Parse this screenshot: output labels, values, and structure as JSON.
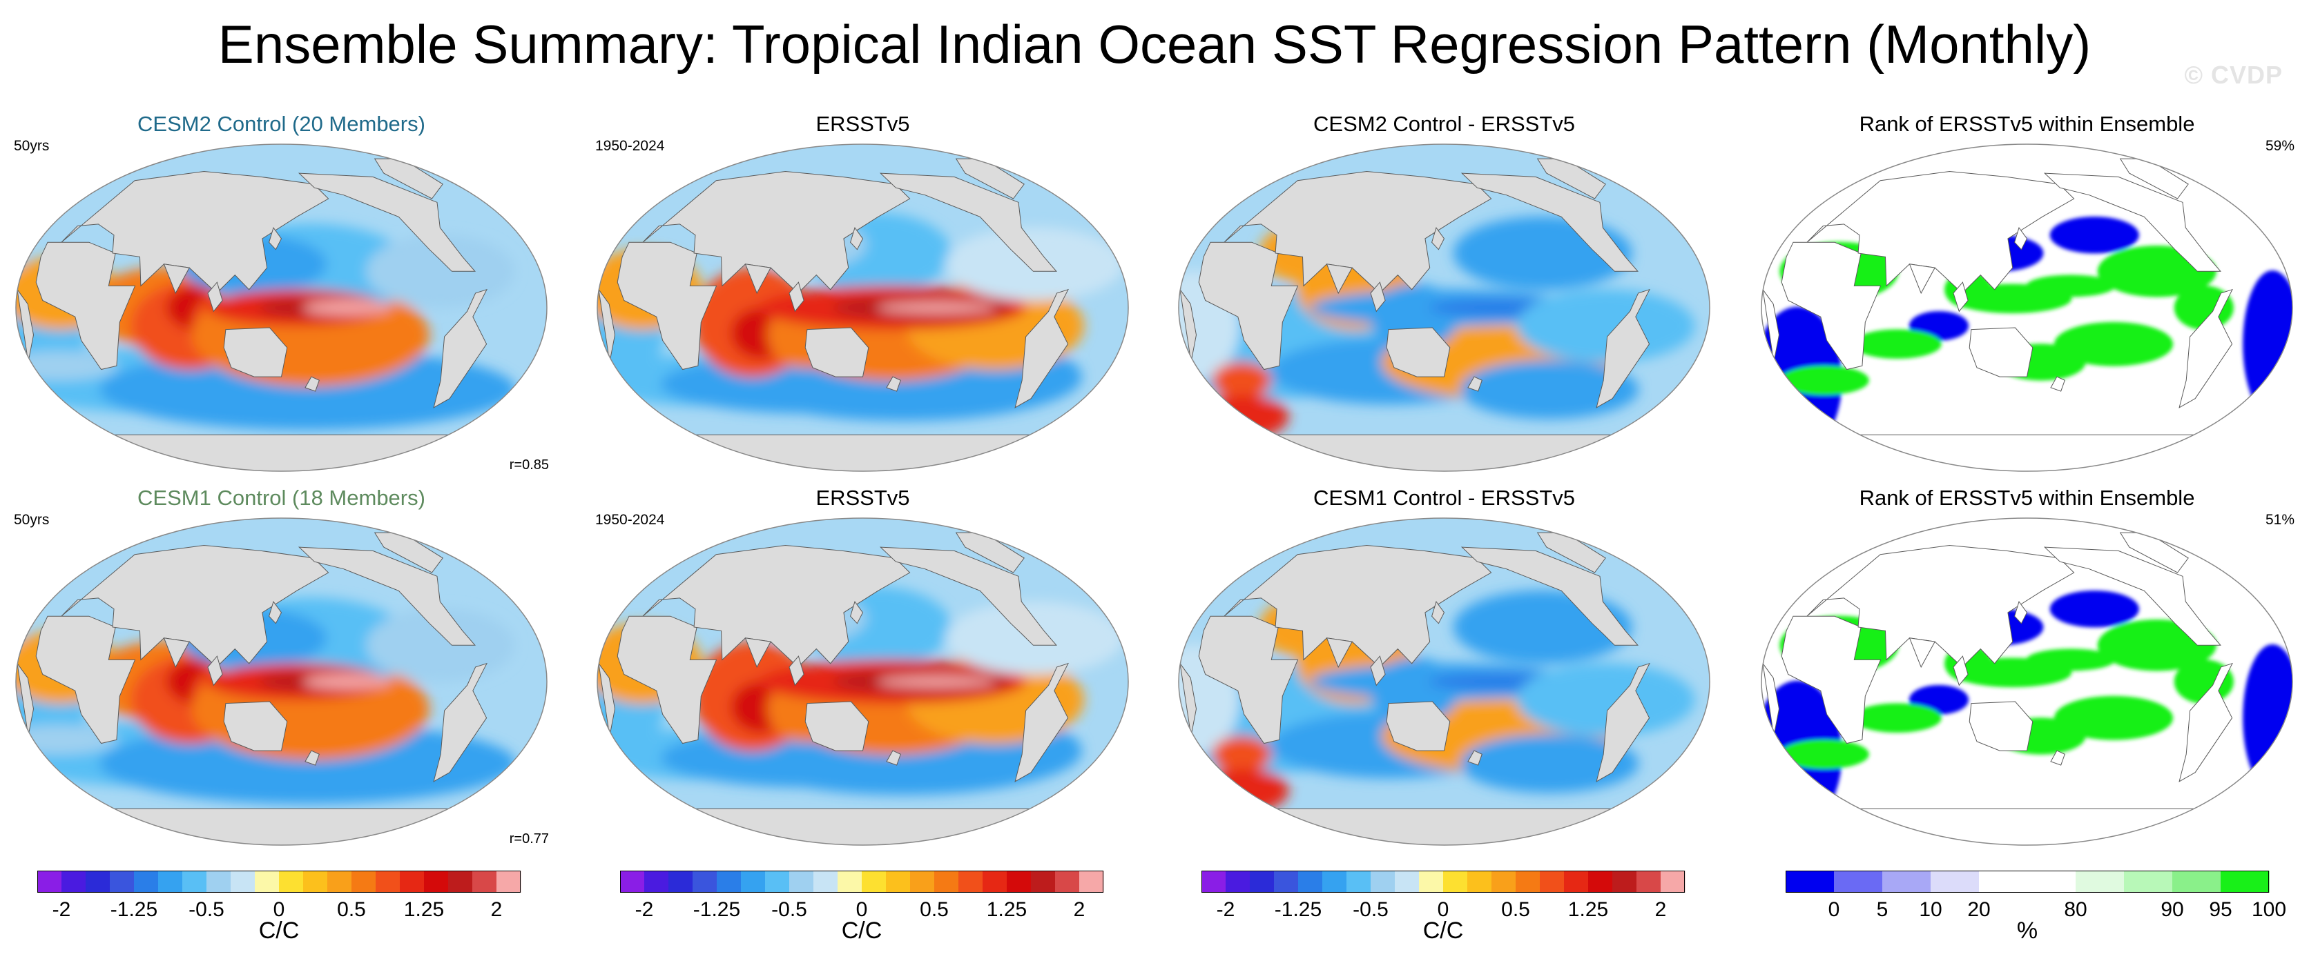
{
  "title": "Ensemble Summary: Tropical Indian Ocean SST Regression Pattern (Monthly)",
  "watermark": "© CVDP",
  "panels": [
    {
      "title": "CESM2 Control (20 Members)",
      "title_color": "#1f6a8a",
      "corner_left": "50yrs",
      "corner_right": "",
      "corr": "r=0.85",
      "kind": "model"
    },
    {
      "title": "ERSSTv5",
      "title_color": "#000000",
      "corner_left": "1950-2024",
      "corner_right": "",
      "corr": "",
      "kind": "obs"
    },
    {
      "title": "CESM2 Control - ERSSTv5",
      "title_color": "#000000",
      "corner_left": "",
      "corner_right": "",
      "corr": "",
      "kind": "diff"
    },
    {
      "title": "Rank of ERSSTv5 within Ensemble",
      "title_color": "#000000",
      "corner_left": "",
      "corner_right": "59%",
      "corr": "",
      "kind": "rank"
    },
    {
      "title": "CESM1 Control (18 Members)",
      "title_color": "#5d8a5d",
      "corner_left": "50yrs",
      "corner_right": "",
      "corr": "r=0.77",
      "kind": "model"
    },
    {
      "title": "ERSSTv5",
      "title_color": "#000000",
      "corner_left": "1950-2024",
      "corner_right": "",
      "corr": "",
      "kind": "obs"
    },
    {
      "title": "CESM1 Control - ERSSTv5",
      "title_color": "#000000",
      "corner_left": "",
      "corner_right": "",
      "corr": "",
      "kind": "diff"
    },
    {
      "title": "Rank of ERSSTv5 within Ensemble",
      "title_color": "#000000",
      "corner_left": "",
      "corner_right": "51%",
      "corr": "",
      "kind": "rank"
    }
  ],
  "colorbars": [
    {
      "colors": [
        "#8a1ee6",
        "#4a1be0",
        "#2b2bd8",
        "#3a55dd",
        "#2a7ee8",
        "#35a2f0",
        "#59bff5",
        "#9fd0f0",
        "#c8e4f5",
        "#fcf8a8",
        "#fde030",
        "#fcc01c",
        "#f9a01a",
        "#f57a14",
        "#f1501a",
        "#e62814",
        "#d40a0a",
        "#bd1c1c",
        "#d84848",
        "#f6a8a8"
      ],
      "ticks": [
        "-2",
        "-1.25",
        "-0.5",
        "0",
        "0.5",
        "1.25",
        "2"
      ],
      "tick_slots": [
        1,
        4,
        7,
        10,
        13,
        16,
        19
      ],
      "unit": "C/C"
    },
    {
      "colors": [
        "#8a1ee6",
        "#4a1be0",
        "#2b2bd8",
        "#3a55dd",
        "#2a7ee8",
        "#35a2f0",
        "#59bff5",
        "#9fd0f0",
        "#c8e4f5",
        "#fcf8a8",
        "#fde030",
        "#fcc01c",
        "#f9a01a",
        "#f57a14",
        "#f1501a",
        "#e62814",
        "#d40a0a",
        "#bd1c1c",
        "#d84848",
        "#f6a8a8"
      ],
      "ticks": [
        "-2",
        "-1.25",
        "-0.5",
        "0",
        "0.5",
        "1.25",
        "2"
      ],
      "tick_slots": [
        1,
        4,
        7,
        10,
        13,
        16,
        19
      ],
      "unit": "C/C"
    },
    {
      "colors": [
        "#8a1ee6",
        "#4a1be0",
        "#2b2bd8",
        "#3a55dd",
        "#2a7ee8",
        "#35a2f0",
        "#59bff5",
        "#9fd0f0",
        "#c8e4f5",
        "#fcf8a8",
        "#fde030",
        "#fcc01c",
        "#f9a01a",
        "#f57a14",
        "#f1501a",
        "#e62814",
        "#d40a0a",
        "#bd1c1c",
        "#d84848",
        "#f6a8a8"
      ],
      "ticks": [
        "-2",
        "-1.25",
        "-0.5",
        "0",
        "0.5",
        "1.25",
        "2"
      ],
      "tick_slots": [
        1,
        4,
        7,
        10,
        13,
        16,
        19
      ],
      "unit": "C/C"
    },
    {
      "colors": [
        "#0000f0",
        "#6a6af4",
        "#a8a8f6",
        "#dcdcfa",
        "#ffffff",
        "#ffffff",
        "#e0fae0",
        "#b8f8b8",
        "#8af08a",
        "#18f018"
      ],
      "ticks": [
        "0",
        "5",
        "10",
        "20",
        "80",
        "90",
        "95",
        "100"
      ],
      "tick_slots": [
        1,
        2,
        3,
        4,
        6,
        8,
        9,
        10
      ],
      "unit": "%"
    }
  ]
}
